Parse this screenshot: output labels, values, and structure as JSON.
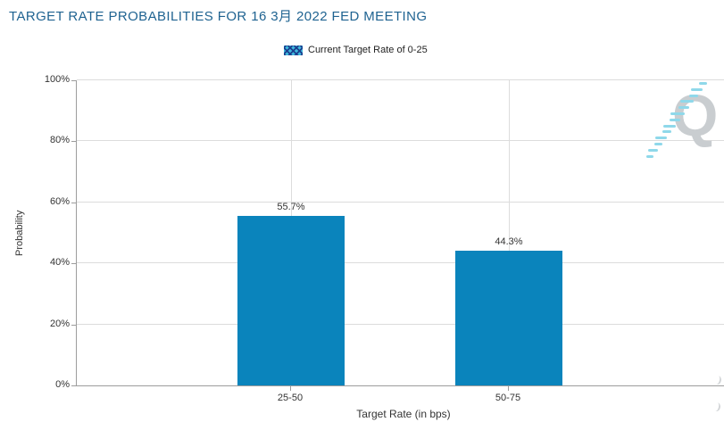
{
  "header": {
    "title": "TARGET RATE PROBABILITIES FOR 16 3月 2022 FED MEETING"
  },
  "legend": {
    "items": [
      {
        "label": "Current Target Rate of 0-25"
      }
    ]
  },
  "axes": {
    "y_title": "Probability",
    "x_title": "Target Rate (in bps)"
  },
  "watermark": {
    "letter": "Q"
  },
  "colors": {
    "title": "#1F6391",
    "bar": "#0A84BC",
    "legend_swatch_bg": "#3FB9DC",
    "legend_swatch_hatch": "#1B3F8F",
    "gridline": "#DCDCDC",
    "axis": "#9C9C9C",
    "tick_label": "#333333",
    "value_label": "#333333",
    "watermark_q": "#C9CDD0",
    "watermark_dash": "#8FD8EA"
  },
  "chart_data": {
    "type": "bar",
    "title": "TARGET RATE PROBABILITIES FOR 16 3月 2022 FED MEETING",
    "categories": [
      "25-50",
      "50-75"
    ],
    "values": [
      55.7,
      44.3
    ],
    "value_labels": [
      "55.7%",
      "44.3%"
    ],
    "xlabel": "Target Rate (in bps)",
    "ylabel": "Probability",
    "ylim": [
      0,
      100
    ],
    "yticks": [
      "0%",
      "20%",
      "40%",
      "60%",
      "80%",
      "100%"
    ],
    "legend_entries": [
      "Current Target Rate of 0-25"
    ],
    "legend_position": "top-center",
    "grid": true
  }
}
